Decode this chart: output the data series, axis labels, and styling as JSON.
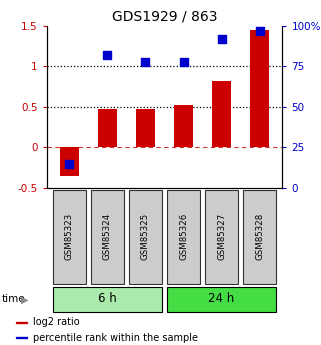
{
  "title": "GDS1929 / 863",
  "samples": [
    "GSM85323",
    "GSM85324",
    "GSM85325",
    "GSM85326",
    "GSM85327",
    "GSM85328"
  ],
  "log2_ratio": [
    -0.35,
    0.48,
    0.48,
    0.52,
    0.82,
    1.45
  ],
  "percentile_rank": [
    15,
    82,
    78,
    78,
    92,
    97
  ],
  "groups": [
    {
      "label": "6 h",
      "indices": [
        0,
        1,
        2
      ],
      "color": "#aaeaaa"
    },
    {
      "label": "24 h",
      "indices": [
        3,
        4,
        5
      ],
      "color": "#44dd44"
    }
  ],
  "ylim_left": [
    -0.5,
    1.5
  ],
  "ylim_right": [
    0,
    100
  ],
  "yticks_left": [
    -0.5,
    0.0,
    0.5,
    1.0,
    1.5
  ],
  "yticks_right": [
    0,
    25,
    50,
    75,
    100
  ],
  "ytick_labels_right": [
    "0",
    "25",
    "50",
    "75",
    "100%"
  ],
  "hline_dotted": [
    0.5,
    1.0
  ],
  "hline_dashed": 0.0,
  "bar_color": "#cc0000",
  "dot_color": "#0000cc",
  "bar_width": 0.5,
  "dot_size": 28,
  "legend_items": [
    "log2 ratio",
    "percentile rank within the sample"
  ],
  "legend_colors": [
    "#cc0000",
    "#0000cc"
  ],
  "sample_box_color": "#cccccc",
  "sample_box_edge": "#333333"
}
